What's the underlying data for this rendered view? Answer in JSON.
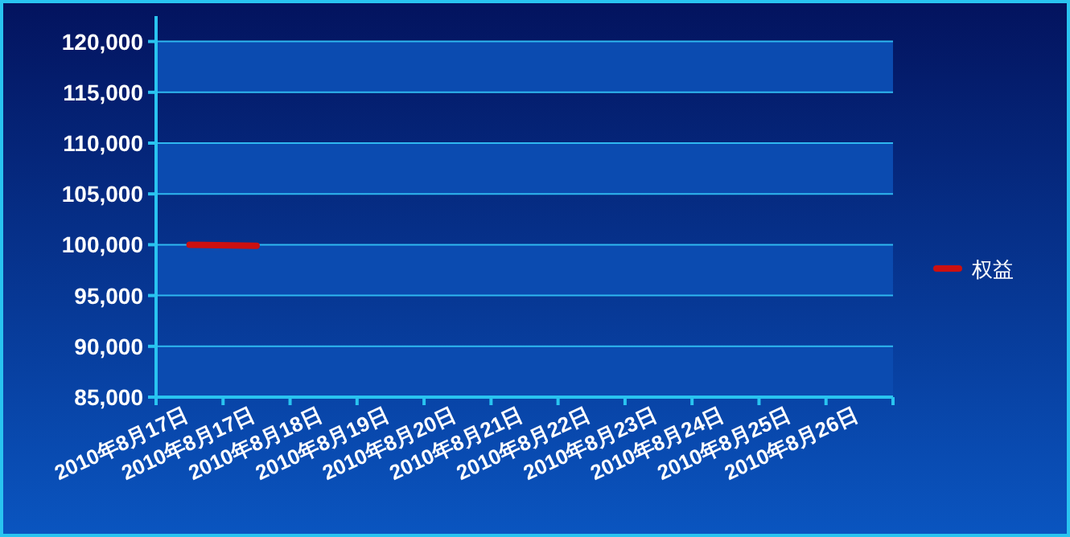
{
  "chart_data": {
    "type": "line",
    "categories": [
      "2010年8月17日",
      "2010年8月17日",
      "2010年8月18日",
      "2010年8月19日",
      "2010年8月20日",
      "2010年8月21日",
      "2010年8月22日",
      "2010年8月23日",
      "2010年8月24日",
      "2010年8月25日",
      "2010年8月26日"
    ],
    "series": [
      {
        "name": "权益",
        "color": "#cc1010",
        "values": [
          100000,
          99900,
          null,
          null,
          null,
          null,
          null,
          null,
          null,
          null,
          null
        ]
      }
    ],
    "ylim": [
      85000,
      122500
    ],
    "yticks": [
      {
        "value": 85000,
        "label": "85,000"
      },
      {
        "value": 90000,
        "label": "90,000"
      },
      {
        "value": 95000,
        "label": "95,000"
      },
      {
        "value": 100000,
        "label": "100,000"
      },
      {
        "value": 105000,
        "label": "105,000"
      },
      {
        "value": 110000,
        "label": "110,000"
      },
      {
        "value": 115000,
        "label": "115,000"
      },
      {
        "value": 120000,
        "label": "120,000"
      }
    ],
    "grid": "y",
    "legend": "right"
  }
}
